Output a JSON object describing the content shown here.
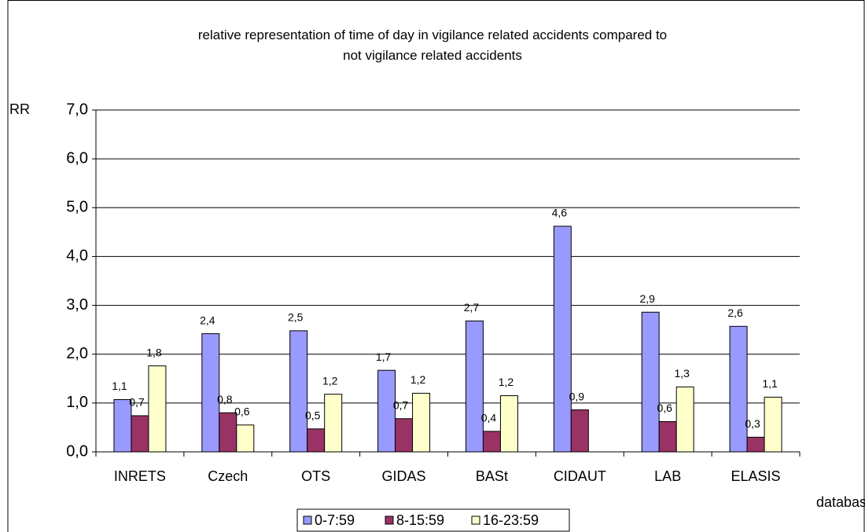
{
  "chart_data": {
    "type": "bar",
    "title": "relative representation of time of day in vigilance related accidents compared to not vigilance related accidents",
    "y_label": "RR",
    "x_label": "database",
    "categories": [
      "INRETS",
      "Czech",
      "OTS",
      "GIDAS",
      "BASt",
      "CIDAUT",
      "LAB",
      "ELASIS"
    ],
    "series": [
      {
        "name": "0-7:59",
        "color": "#9999ff",
        "values": [
          1.07,
          2.42,
          2.48,
          1.67,
          2.68,
          4.62,
          2.86,
          2.57
        ],
        "value_labels": [
          "1,1",
          "2,4",
          "2,5",
          "1,7",
          "2,7",
          "4,6",
          "2,9",
          "2,6"
        ]
      },
      {
        "name": "8-15:59",
        "color": "#993366",
        "values": [
          0.74,
          0.8,
          0.47,
          0.68,
          0.42,
          0.86,
          0.62,
          0.3
        ],
        "value_labels": [
          "0,7",
          "0,8",
          "0,5",
          "0,7",
          "0,4",
          "0,9",
          "0,6",
          "0,3"
        ]
      },
      {
        "name": "16-23:59",
        "color": "#ffffcc",
        "values": [
          1.76,
          0.55,
          1.18,
          1.2,
          1.15,
          null,
          1.33,
          1.12
        ],
        "value_labels": [
          "1,8",
          "0,6",
          "1,2",
          "1,2",
          "1,2",
          null,
          "1,3",
          "1,1"
        ]
      }
    ],
    "ylim": [
      0,
      7
    ],
    "yticks": [
      {
        "value": 0,
        "label": "0,0"
      },
      {
        "value": 1,
        "label": "1,0"
      },
      {
        "value": 2,
        "label": "2,0"
      },
      {
        "value": 3,
        "label": "3,0"
      },
      {
        "value": 4,
        "label": "4,0"
      },
      {
        "value": 5,
        "label": "5,0"
      },
      {
        "value": 6,
        "label": "6,0"
      },
      {
        "value": 7,
        "label": "7,0"
      }
    ],
    "grid": true,
    "legend": "bottom"
  }
}
